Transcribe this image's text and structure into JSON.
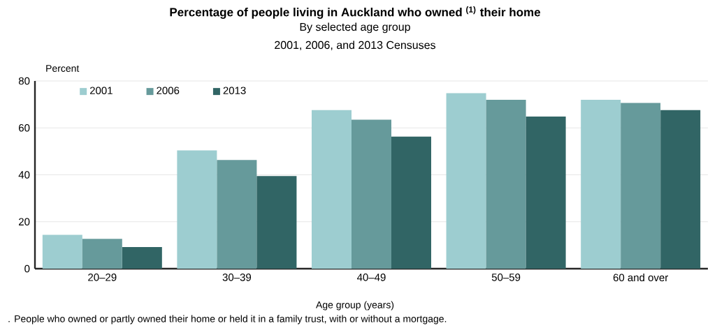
{
  "chart_data": {
    "type": "bar",
    "title": "Percentage of people living in Auckland who owned $^{(1)}$ their home",
    "subtitle": "By selected age group\n2001, 2006, and 2013 Censuses",
    "ylabel": "Percent",
    "xlabel": "Age group (years)",
    "annotations": [
      ". People who owned or partly owned their home or held it in a family trust, with or without a mortgage."
    ],
    "categories": [
      "20–29",
      "30–39",
      "40–49",
      "50–59",
      "60 and over"
    ],
    "series": [
      {
        "name": "2001",
        "color": "#9dcdd0",
        "values": [
          14.4,
          50.4,
          67.6,
          74.8,
          72.0
        ]
      },
      {
        "name": "2006",
        "color": "#669a9b",
        "values": [
          12.7,
          46.3,
          63.5,
          72.0,
          70.6
        ]
      },
      {
        "name": "2013",
        "color": "#316565",
        "values": [
          9.2,
          39.5,
          56.3,
          64.8,
          67.6
        ]
      }
    ],
    "ylim": [
      0,
      80
    ],
    "yticks": [
      0,
      20,
      40,
      60,
      80
    ],
    "grid": "y",
    "legend": "top left"
  }
}
